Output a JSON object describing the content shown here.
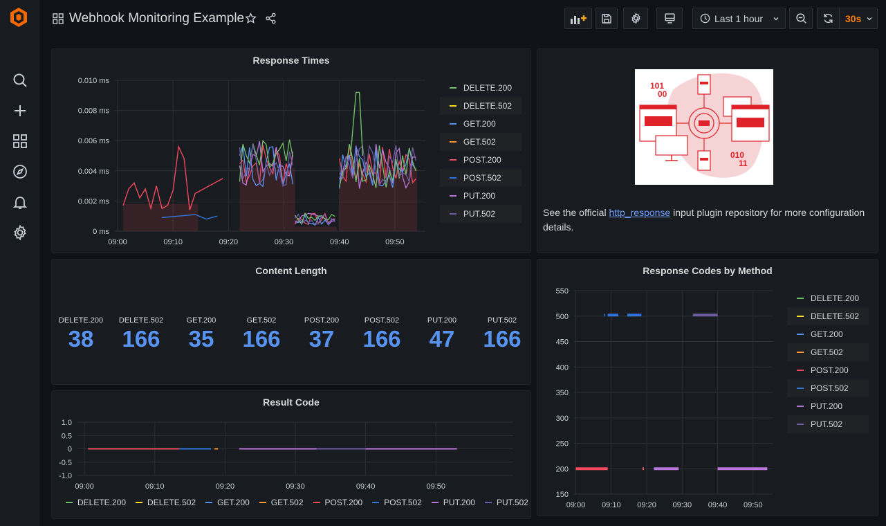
{
  "header": {
    "title": "Webhook Monitoring Example",
    "time_range": "Last 1 hour",
    "refresh": "30s"
  },
  "series_names": [
    "DELETE.200",
    "DELETE.502",
    "GET.200",
    "GET.502",
    "POST.200",
    "POST.502",
    "PUT.200",
    "PUT.502"
  ],
  "series_colors": [
    "#73bf69",
    "#fade2a",
    "#5794f2",
    "#ff9830",
    "#f2495c",
    "#3274d9",
    "#b877d9",
    "#705da0"
  ],
  "response_times": {
    "title": "Response Times",
    "y_ticks": [
      "0.010 ms",
      "0.008 ms",
      "0.006 ms",
      "0.004 ms",
      "0.002 ms",
      "0 ms"
    ],
    "x_ticks": [
      "09:00",
      "09:10",
      "09:20",
      "09:30",
      "09:40",
      "09:50"
    ]
  },
  "info_panel": {
    "text_before": "See the official ",
    "link": "http_response",
    "text_after": " input plugin repository for more configuration details.",
    "image_text_1": "101",
    "image_text_2": "00",
    "image_text_3": "010",
    "image_text_4": "11"
  },
  "content_length": {
    "title": "Content Length",
    "stats": [
      {
        "label": "DELETE.200",
        "value": "38"
      },
      {
        "label": "DELETE.502",
        "value": "166"
      },
      {
        "label": "GET.200",
        "value": "35"
      },
      {
        "label": "GET.502",
        "value": "166"
      },
      {
        "label": "POST.200",
        "value": "37"
      },
      {
        "label": "POST.502",
        "value": "166"
      },
      {
        "label": "PUT.200",
        "value": "47"
      },
      {
        "label": "PUT.502",
        "value": "166"
      }
    ]
  },
  "result_code": {
    "title": "Result Code",
    "y_ticks": [
      "1.0",
      "0.5",
      "0",
      "-0.5",
      "-1.0"
    ],
    "x_ticks": [
      "09:00",
      "09:10",
      "09:20",
      "09:30",
      "09:40",
      "09:50"
    ]
  },
  "response_codes": {
    "title": "Response Codes by Method",
    "y_ticks": [
      "550",
      "500",
      "450",
      "400",
      "350",
      "300",
      "250",
      "200",
      "150"
    ],
    "x_ticks": [
      "09:00",
      "09:10",
      "09:20",
      "09:30",
      "09:40",
      "09:50"
    ]
  },
  "chart_data": [
    {
      "type": "line",
      "title": "Response Times",
      "x_range": [
        "09:00",
        "09:55"
      ],
      "ylim": [
        0,
        0.01
      ],
      "y_unit": "ms",
      "series": [
        {
          "name": "POST.200",
          "x": [
            "09:01",
            "09:02",
            "09:03",
            "09:04",
            "09:05",
            "09:06",
            "09:07",
            "09:08",
            "09:09",
            "09:10",
            "09:11",
            "09:12",
            "09:13",
            "09:14",
            "09:19"
          ],
          "values": [
            0.0017,
            0.0028,
            0.0032,
            0.0022,
            0.0028,
            0.0015,
            0.003,
            0.0015,
            0.0017,
            0.0027,
            0.0056,
            0.0048,
            0.0014,
            0.0025,
            0.0035
          ]
        },
        {
          "name": "POST.502",
          "x": [
            "09:08",
            "09:14",
            "09:16",
            "09:18"
          ],
          "values": [
            0.0009,
            0.0011,
            0.0008,
            0.001
          ]
        }
      ]
    },
    {
      "type": "line",
      "title": "Response Codes by Method",
      "ylim": [
        150,
        550
      ],
      "series": [
        {
          "name": "POST.200",
          "x": [
            "09:00",
            "09:09"
          ],
          "values": [
            200,
            200
          ]
        },
        {
          "name": "POST.502",
          "x": [
            "09:09",
            "09:12"
          ],
          "values": [
            502,
            502
          ]
        },
        {
          "name": "PUT.200",
          "x": [
            "09:22",
            "09:29",
            "09:40",
            "09:54"
          ],
          "values": [
            200,
            200,
            200,
            200
          ]
        },
        {
          "name": "PUT.502",
          "x": [
            "09:33",
            "09:40"
          ],
          "values": [
            502,
            502
          ]
        }
      ]
    }
  ]
}
